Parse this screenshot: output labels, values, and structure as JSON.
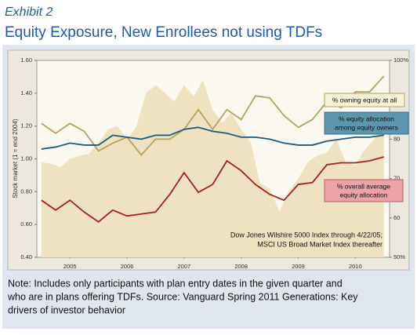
{
  "header": {
    "exhibit": "Exhibit 2",
    "title": "Equity Exposure, New Enrollees not using TDFs"
  },
  "chart_data": {
    "type": "line",
    "ylabel": "Stock market (1 = end 2004)",
    "x": [
      2005,
      2005.25,
      2005.5,
      2005.75,
      2006,
      2006.25,
      2006.5,
      2006.75,
      2007,
      2007.25,
      2007.5,
      2007.75,
      2008,
      2008.25,
      2008.5,
      2008.75,
      2009,
      2009.25,
      2009.5,
      2009.75,
      2010,
      2010.25,
      2010.5,
      2010.75,
      2011
    ],
    "xlim": [
      2004.92,
      2011.1
    ],
    "xticks": [
      {
        "value": 2005.5,
        "label": "2005"
      },
      {
        "value": 2006.5,
        "label": "2006"
      },
      {
        "value": 2007.5,
        "label": "2007"
      },
      {
        "value": 2008.5,
        "label": "2008"
      },
      {
        "value": 2009.5,
        "label": "2009"
      },
      {
        "value": 2010.5,
        "label": "2010"
      }
    ],
    "ylim": [
      0.4,
      1.6
    ],
    "yticks": [
      {
        "value": 0.4,
        "label": "0.40"
      },
      {
        "value": 0.6,
        "label": "0.60"
      },
      {
        "value": 0.8,
        "label": "0.80"
      },
      {
        "value": 1.0,
        "label": "1.00"
      },
      {
        "value": 1.2,
        "label": "1.20"
      },
      {
        "value": 1.4,
        "label": "1.40"
      },
      {
        "value": 1.6,
        "label": "1.60"
      }
    ],
    "y2lim": [
      50,
      100
    ],
    "y2ticks": [
      {
        "value": 50,
        "label": "50%"
      },
      60,
      70,
      80,
      90,
      {
        "value": 100,
        "label": "100%"
      }
    ],
    "series": [
      {
        "name": [
          "Dow Jones Wilshire 5000 Index through 4/22/05;",
          "MSCI US Broad Market Index thereafter"
        ],
        "kind": "area",
        "color": "#efe2c0",
        "x": [
          2005,
          2005.17,
          2005.33,
          2005.5,
          2005.67,
          2005.83,
          2006,
          2006.17,
          2006.33,
          2006.5,
          2006.67,
          2006.83,
          2007,
          2007.17,
          2007.33,
          2007.5,
          2007.67,
          2007.83,
          2008,
          2008.17,
          2008.33,
          2008.5,
          2008.67,
          2008.83,
          2009,
          2009.17,
          2009.33,
          2009.5,
          2009.67,
          2009.83,
          2010,
          2010.17,
          2010.33,
          2010.5,
          2010.67,
          2010.83,
          2011
        ],
        "values": [
          0.98,
          0.97,
          0.95,
          1.0,
          1.02,
          1.03,
          1.1,
          1.18,
          1.2,
          1.12,
          1.2,
          1.4,
          1.45,
          1.4,
          1.35,
          1.45,
          1.38,
          1.48,
          1.3,
          1.22,
          1.28,
          1.18,
          1.1,
          0.85,
          0.82,
          0.68,
          0.8,
          0.88,
          0.98,
          1.02,
          1.04,
          1.12,
          0.98,
          0.96,
          1.06,
          1.12,
          1.22
        ]
      },
      {
        "name": [
          "% owning equity at all"
        ],
        "color": "#b5a45e",
        "axis": "y2",
        "values": [
          84,
          81.5,
          84,
          82,
          77,
          79,
          80.5,
          76,
          80,
          80,
          82.5,
          87.5,
          82.5,
          87.5,
          85,
          91,
          90.5,
          86,
          83,
          85,
          89.5,
          88,
          92,
          92,
          96
        ]
      },
      {
        "name": [
          "% equity allocation",
          "among equity owners"
        ],
        "color": "#1d5a80",
        "axis": "y2",
        "values": [
          77.5,
          78,
          79,
          78.5,
          78.5,
          81,
          80.5,
          80,
          81,
          81,
          82.5,
          83,
          82,
          81.5,
          80.5,
          80.5,
          80,
          79,
          78.5,
          78.5,
          79.5,
          80,
          80.5,
          80.5,
          81
        ]
      },
      {
        "name": [
          "% overall average",
          "equity allocation"
        ],
        "color": "#a3202a",
        "axis": "y2",
        "values": [
          64.5,
          62,
          64.5,
          61.5,
          59,
          62,
          60.5,
          61,
          61.5,
          66,
          71.5,
          66.5,
          68.5,
          74.5,
          72,
          68.5,
          66,
          64.5,
          68.5,
          69,
          73.5,
          74,
          74,
          74.5,
          75.5
        ]
      }
    ]
  },
  "note": [
    "Note: Includes only participants with plan entry dates in the given quarter and",
    "who are in plans offering TDFs.  Source: Vanguard Spring 2011 Generations: Key",
    "drivers of investor behavior"
  ]
}
